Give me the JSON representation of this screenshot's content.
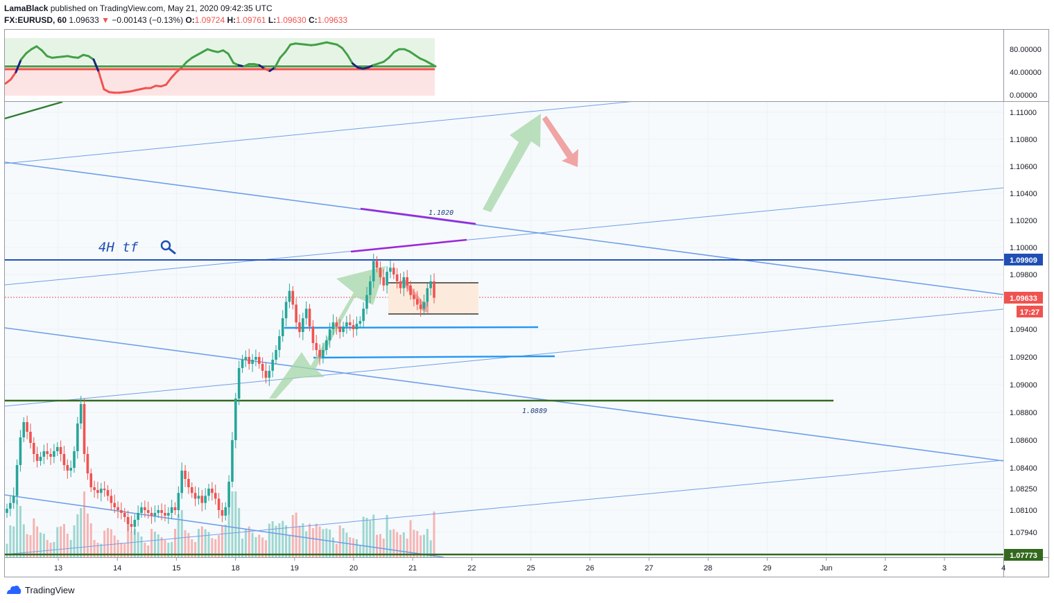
{
  "header": {
    "author": "LamaBlack",
    "published_text": "published on TradingView.com, May 21, 2020 09:42:35 UTC",
    "symbol": "FX:EURUSD, 60",
    "price": "1.09633",
    "change": "−0.00143 (−0.13%)",
    "open_label": "O:",
    "open": "1.09724",
    "high_label": "H:",
    "high": "1.09761",
    "low_label": "L:",
    "low": "1.09630",
    "close_label": "C:",
    "close": "1.09633"
  },
  "footer": {
    "brand": "TradingView"
  },
  "chart_data": [
    {
      "type": "line",
      "name": "oscillator",
      "y_ticks": [
        "80.00000",
        "40.00000",
        "0.00000"
      ],
      "ylim": [
        -5,
        100
      ],
      "levels": [
        50,
        45
      ],
      "values": [
        20,
        27,
        40,
        62,
        73,
        80,
        85,
        78,
        68,
        65,
        66,
        67,
        68,
        66,
        65,
        70,
        68,
        62,
        40,
        10,
        5,
        4,
        4,
        5,
        6,
        8,
        10,
        12,
        12,
        16,
        15,
        18,
        30,
        40,
        48,
        58,
        65,
        70,
        75,
        80,
        77,
        75,
        78,
        72,
        56,
        52,
        50,
        54,
        54,
        52,
        46,
        42,
        48,
        65,
        75,
        88,
        90,
        89,
        88,
        87,
        88,
        90,
        92,
        90,
        88,
        82,
        70,
        55,
        48,
        46,
        48,
        52,
        55,
        58,
        65,
        75,
        80,
        80,
        76,
        70,
        64,
        60,
        55,
        50
      ]
    },
    {
      "type": "candlestick",
      "name": "EURUSD 60",
      "x_ticks": [
        "13",
        "14",
        "15",
        "18",
        "19",
        "20",
        "21",
        "22",
        "25",
        "26",
        "27",
        "28",
        "29",
        "Jun",
        "2",
        "3",
        "4"
      ],
      "y_ticks": [
        "1.11000",
        "1.10800",
        "1.10600",
        "1.10400",
        "1.10200",
        "1.10000",
        "1.09800",
        "1.09400",
        "1.09200",
        "1.09000",
        "1.08800",
        "1.08600",
        "1.08400",
        "1.08250",
        "1.08100",
        "1.07940"
      ],
      "ylim": [
        1.0777,
        1.112
      ],
      "price_labels": {
        "resistance": "1.09909",
        "last": "1.09633",
        "countdown": "17:27",
        "support": "1.07773"
      },
      "annotations": {
        "level_top": "1.1020",
        "level_green": "1.0889",
        "timeframe_note": "4H tf"
      },
      "closes": [
        1.0811,
        1.0815,
        1.082,
        1.0842,
        1.0862,
        1.0873,
        1.0866,
        1.0858,
        1.085,
        1.0845,
        1.0848,
        1.0852,
        1.085,
        1.0848,
        1.0852,
        1.0855,
        1.085,
        1.0842,
        1.0838,
        1.084,
        1.0852,
        1.0872,
        1.0886,
        1.085,
        1.0836,
        1.0826,
        1.0824,
        1.0822,
        1.0825,
        1.0824,
        1.082,
        1.0815,
        1.0812,
        1.081,
        1.0808,
        1.0805,
        1.08,
        1.0798,
        1.0803,
        1.0808,
        1.0812,
        1.081,
        1.0808,
        1.0806,
        1.0808,
        1.081,
        1.0808,
        1.0806,
        1.0808,
        1.0812,
        1.081,
        1.0822,
        1.0838,
        1.0832,
        1.0826,
        1.0822,
        1.0818,
        1.082,
        1.0815,
        1.082,
        1.0825,
        1.0822,
        1.0818,
        1.081,
        1.0806,
        1.0812,
        1.083,
        1.086,
        1.089,
        1.0912,
        1.0918,
        1.092,
        1.0915,
        1.0918,
        1.092,
        1.0915,
        1.091,
        1.0905,
        1.091,
        1.0918,
        1.0925,
        1.0935,
        1.0948,
        1.096,
        1.0968,
        1.0958,
        1.0945,
        1.0938,
        1.0948,
        1.0955,
        1.0942,
        1.093,
        1.0925,
        1.092,
        1.0925,
        1.0932,
        1.094,
        1.0945,
        1.0942,
        1.0938,
        1.0942,
        1.0945,
        1.0943,
        1.094,
        1.0944,
        1.0946,
        1.0955,
        1.0965,
        1.0975,
        1.099,
        1.0985,
        1.0978,
        1.0972,
        1.0982,
        1.0985,
        1.098,
        1.0975,
        1.097,
        1.0978,
        1.0972,
        1.0965,
        1.0962,
        1.0958,
        1.0955,
        1.096,
        1.097,
        1.0975,
        1.0963
      ]
    }
  ]
}
